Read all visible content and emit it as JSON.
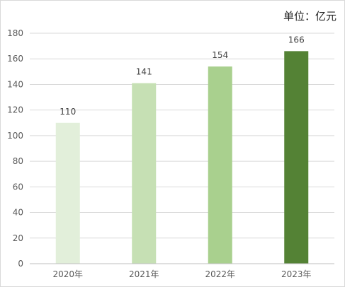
{
  "chart_data": {
    "type": "bar",
    "unit_label": "单位：亿元",
    "categories": [
      "2020年",
      "2021年",
      "2022年",
      "2023年"
    ],
    "values": [
      110,
      141,
      154,
      166
    ],
    "colors": [
      "#e2efda",
      "#c6e0b4",
      "#a9d08e",
      "#548235"
    ],
    "ylim": [
      0,
      180
    ],
    "yticks": [
      "0",
      "20",
      "40",
      "60",
      "80",
      "100",
      "120",
      "140",
      "160",
      "180"
    ],
    "data_labels": [
      "110",
      "141",
      "154",
      "166"
    ],
    "grid": true,
    "legend": "none"
  }
}
